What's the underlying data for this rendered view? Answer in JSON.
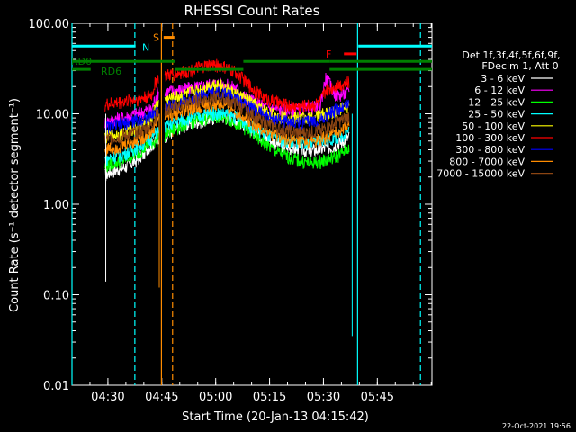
{
  "chart_data": {
    "type": "line",
    "title": "RHESSI Count Rates",
    "xlabel": "Start Time (20-Jan-13 04:15:42)",
    "ylabel": "Count Rate (s⁻¹ detector segment⁻¹)",
    "yscale": "log",
    "ylim": [
      0.01,
      100
    ],
    "xlim_minutes": [
      4.3,
      104.5
    ],
    "x_ticks": [
      {
        "label": "04:30",
        "minute": 14.3
      },
      {
        "label": "04:45",
        "minute": 29.3
      },
      {
        "label": "05:00",
        "minute": 44.3
      },
      {
        "label": "05:15",
        "minute": 59.3
      },
      {
        "label": "05:30",
        "minute": 74.3
      },
      {
        "label": "05:45",
        "minute": 89.3
      }
    ],
    "y_ticks": [
      {
        "label": "100.00",
        "value": 100
      },
      {
        "label": "10.00",
        "value": 10
      },
      {
        "label": "1.00",
        "value": 1
      },
      {
        "label": "0.10",
        "value": 0.1
      },
      {
        "label": "0.01",
        "value": 0.01
      }
    ],
    "legend_header": [
      "Det 1f,3f,4f,5f,6f,9f,",
      "FDecim 1, Att 0"
    ],
    "legend_position": "right",
    "x_minutes": [
      13.5,
      15,
      18,
      20,
      22,
      24,
      25,
      26.5,
      28,
      30,
      32,
      34,
      36,
      38,
      40,
      42,
      44,
      46,
      48,
      50,
      52,
      54,
      56,
      58,
      60,
      62,
      64,
      66,
      68,
      70,
      72,
      73.5,
      75,
      77,
      78,
      79.5,
      80.5,
      81.5
    ],
    "series": [
      {
        "name": "3 - 6 keV",
        "color": "#ffffff",
        "values": [
          2.1,
          2.3,
          2.5,
          2.7,
          3.0,
          3.5,
          4.0,
          4.6,
          5.0,
          5.6,
          6.3,
          7.0,
          7.5,
          8.0,
          8.3,
          8.6,
          9.1,
          9.3,
          9.3,
          8.6,
          7.8,
          6.9,
          6.1,
          5.4,
          5.0,
          4.6,
          4.3,
          4.1,
          4.0,
          3.9,
          4.0,
          4.1,
          4.2,
          4.4,
          4.6,
          4.9,
          5.2,
          5.6
        ]
      },
      {
        "name": "6 - 12 keV",
        "color": "#ff00ff",
        "values": [
          8.0,
          8.6,
          9.0,
          9.5,
          10.0,
          10.5,
          11.0,
          11.0,
          17.0,
          17.5,
          18.0,
          18.5,
          19.0,
          19.5,
          20.0,
          21.0,
          21.5,
          21.5,
          20.5,
          19.5,
          16.0,
          14.5,
          13.0,
          12.0,
          11.5,
          11.2,
          11.0,
          11.0,
          11.2,
          11.5,
          12.0,
          12.5,
          25.0,
          18.0,
          16.0,
          16.5,
          17.0,
          17.5
        ]
      },
      {
        "name": "12 - 25 keV",
        "color": "#00ff00",
        "values": [
          2.6,
          2.8,
          3.0,
          3.3,
          3.6,
          4.0,
          4.4,
          4.8,
          5.2,
          5.8,
          6.5,
          7.2,
          7.8,
          8.3,
          8.7,
          9.0,
          9.3,
          9.3,
          8.8,
          8.0,
          7.2,
          6.3,
          5.4,
          4.7,
          4.1,
          3.7,
          3.4,
          3.2,
          3.0,
          2.9,
          2.9,
          3.0,
          3.1,
          3.3,
          3.4,
          3.7,
          4.0,
          4.3
        ]
      },
      {
        "name": "25 - 50 keV",
        "color": "#00ffff",
        "values": [
          3.1,
          3.3,
          3.5,
          3.8,
          4.2,
          4.6,
          5.0,
          5.5,
          6.3,
          7.0,
          7.7,
          8.3,
          8.8,
          9.2,
          9.6,
          10.0,
          10.3,
          10.3,
          9.8,
          9.2,
          8.2,
          7.4,
          6.6,
          6.0,
          5.5,
          5.2,
          5.0,
          4.9,
          4.8,
          4.8,
          4.9,
          5.0,
          5.1,
          5.3,
          5.5,
          5.8,
          6.2,
          6.5
        ]
      },
      {
        "name": "50 - 100 keV",
        "color": "#ffff00",
        "values": [
          5.5,
          5.8,
          6.0,
          6.5,
          7.0,
          7.6,
          8.2,
          8.8,
          13.0,
          14.0,
          14.8,
          15.6,
          16.5,
          17.5,
          18.5,
          20.0,
          21.5,
          20.5,
          18.0,
          16.5,
          15.0,
          13.5,
          12.0,
          10.8,
          10.0,
          9.5,
          9.2,
          9.0,
          9.0,
          9.0,
          9.3,
          9.7,
          10.0,
          10.6,
          11.0,
          11.5,
          12.0,
          12.5
        ]
      },
      {
        "name": "100 - 300 keV",
        "color": "#ff0000",
        "values": [
          12.5,
          13.0,
          13.5,
          14.0,
          14.5,
          15.0,
          15.5,
          16.0,
          25.0,
          26.0,
          27.0,
          28.0,
          29.5,
          31.0,
          32.5,
          34.0,
          35.0,
          33.5,
          31.0,
          29.0,
          24.0,
          20.0,
          17.0,
          15.0,
          14.0,
          13.0,
          12.5,
          12.3,
          12.3,
          12.5,
          12.8,
          14.0,
          18.0,
          20.0,
          21.0,
          21.5,
          22.0,
          22.5
        ]
      },
      {
        "name": "300 - 800 keV",
        "color": "#0000ff",
        "values": [
          7.0,
          7.3,
          7.6,
          8.0,
          8.4,
          8.8,
          9.2,
          9.6,
          11.0,
          11.8,
          12.5,
          13.3,
          14.2,
          15.0,
          15.8,
          16.5,
          17.0,
          17.0,
          16.0,
          15.0,
          13.5,
          12.0,
          10.8,
          9.8,
          9.0,
          8.5,
          8.2,
          8.0,
          8.0,
          8.1,
          8.3,
          8.6,
          9.5,
          10.5,
          11.2,
          11.8,
          12.4,
          13.0
        ]
      },
      {
        "name": "800 - 7000 keV",
        "color": "#ff8c00",
        "values": [
          4.0,
          4.2,
          4.4,
          4.7,
          5.0,
          5.4,
          5.8,
          6.2,
          8.5,
          9.2,
          9.8,
          10.5,
          11.0,
          11.6,
          12.0,
          12.4,
          12.6,
          12.4,
          11.6,
          10.6,
          9.4,
          8.3,
          7.3,
          6.5,
          5.9,
          5.5,
          5.2,
          5.0,
          4.9,
          4.9,
          5.0,
          5.2,
          5.5,
          5.9,
          6.3,
          6.8,
          7.2,
          7.6
        ]
      },
      {
        "name": "7000 - 15000 keV",
        "color": "#8b4513",
        "values": [
          5.2,
          5.4,
          5.6,
          5.9,
          6.2,
          6.6,
          7.0,
          7.4,
          10.0,
          10.8,
          11.5,
          12.3,
          13.0,
          13.6,
          14.2,
          14.8,
          15.2,
          15.0,
          14.0,
          12.8,
          11.4,
          10.0,
          8.9,
          8.0,
          7.3,
          6.8,
          6.5,
          6.3,
          6.2,
          6.2,
          6.4,
          6.6,
          7.0,
          7.6,
          8.0,
          8.5,
          9.0,
          9.4
        ]
      }
    ],
    "attenuator_bars": [
      {
        "label": "RD0",
        "color": "#008000",
        "y": 38,
        "segments": [
          [
            4.3,
            33
          ],
          [
            76,
            104.5
          ]
        ]
      },
      {
        "label": "RD6",
        "color": "#008000",
        "y": 31,
        "segments": [
          [
            4.3,
            9.5
          ],
          [
            33,
            52
          ],
          [
            76,
            104.5
          ]
        ]
      },
      {
        "label": "",
        "color": "#008000",
        "y": 38,
        "segments": [
          [
            52,
            76
          ]
        ]
      }
    ],
    "state_bars": [
      {
        "label": "N",
        "color": "#00ffff",
        "y": 56,
        "segments": [
          [
            4.3,
            22
          ],
          [
            84,
            104.5
          ]
        ]
      },
      {
        "label": "S",
        "color": "#ff8c00",
        "y": 70,
        "segments": [
          [
            29.8,
            32.8
          ]
        ]
      },
      {
        "label": "F",
        "color": "#ff0000",
        "y": 46,
        "segments": [
          [
            80,
            83.5
          ]
        ]
      }
    ],
    "vertical_markers": [
      {
        "minute": 4.3,
        "color": "#00ffff",
        "style": "solid"
      },
      {
        "minute": 21.8,
        "color": "#00ffff",
        "style": "dashed"
      },
      {
        "minute": 29.2,
        "color": "#ff8c00",
        "style": "solid"
      },
      {
        "minute": 32.3,
        "color": "#ff8c00",
        "style": "dashed"
      },
      {
        "minute": 83.8,
        "color": "#00ffff",
        "style": "solid"
      },
      {
        "minute": 101.3,
        "color": "#00ffff",
        "style": "dashed"
      }
    ],
    "spikes": [
      {
        "minute": 13.7,
        "min_value": 0.14
      },
      {
        "minute": 28.6,
        "min_value": 0.12
      },
      {
        "minute": 82.3,
        "min_value": 0.035
      }
    ],
    "timestamp": "22-Oct-2021 19:56"
  }
}
